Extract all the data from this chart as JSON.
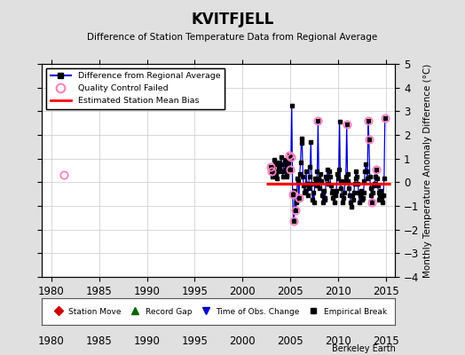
{
  "title": "KVITFJELL",
  "subtitle": "Difference of Station Temperature Data from Regional Average",
  "ylabel": "Monthly Temperature Anomaly Difference (°C)",
  "xlabel_credit": "Berkeley Earth",
  "xlim": [
    1979,
    2016
  ],
  "ylim": [
    -4,
    5
  ],
  "yticks": [
    -4,
    -3,
    -2,
    -1,
    0,
    1,
    2,
    3,
    4,
    5
  ],
  "xticks": [
    1980,
    1985,
    1990,
    1995,
    2000,
    2005,
    2010,
    2015
  ],
  "bias_line_y": -0.05,
  "bias_line_xstart": 2002.5,
  "bias_line_xend": 2015.5,
  "qc_failed_isolated": [
    [
      1981.3,
      0.3
    ]
  ],
  "background_color": "#e0e0e0",
  "plot_bg_color": "#ffffff",
  "data_color": "#0000cc",
  "bias_color": "#ff0000",
  "qc_color": "#ff80c0",
  "series_years": [
    2003.0,
    2003.083,
    2003.167,
    2003.25,
    2003.333,
    2003.417,
    2003.5,
    2003.583,
    2003.667,
    2003.75,
    2003.833,
    2003.917,
    2004.0,
    2004.083,
    2004.167,
    2004.25,
    2004.333,
    2004.417,
    2004.5,
    2004.583,
    2004.667,
    2004.75,
    2004.833,
    2004.917,
    2005.0,
    2005.083,
    2005.167,
    2005.25,
    2005.333,
    2005.417,
    2005.5,
    2005.583,
    2005.667,
    2005.75,
    2005.833,
    2005.917,
    2006.0,
    2006.083,
    2006.167,
    2006.25,
    2006.333,
    2006.417,
    2006.5,
    2006.583,
    2006.667,
    2006.75,
    2006.833,
    2006.917,
    2007.0,
    2007.083,
    2007.167,
    2007.25,
    2007.333,
    2007.417,
    2007.5,
    2007.583,
    2007.667,
    2007.75,
    2007.833,
    2007.917,
    2008.0,
    2008.083,
    2008.167,
    2008.25,
    2008.333,
    2008.417,
    2008.5,
    2008.583,
    2008.667,
    2008.75,
    2008.833,
    2008.917,
    2009.0,
    2009.083,
    2009.167,
    2009.25,
    2009.333,
    2009.417,
    2009.5,
    2009.583,
    2009.667,
    2009.75,
    2009.833,
    2009.917,
    2010.0,
    2010.083,
    2010.167,
    2010.25,
    2010.333,
    2010.417,
    2010.5,
    2010.583,
    2010.667,
    2010.75,
    2010.833,
    2010.917,
    2011.0,
    2011.083,
    2011.167,
    2011.25,
    2011.333,
    2011.417,
    2011.5,
    2011.583,
    2011.667,
    2011.75,
    2011.833,
    2011.917,
    2012.0,
    2012.083,
    2012.167,
    2012.25,
    2012.333,
    2012.417,
    2012.5,
    2012.583,
    2012.667,
    2012.75,
    2012.833,
    2012.917,
    2013.0,
    2013.083,
    2013.167,
    2013.25,
    2013.333,
    2013.417,
    2013.5,
    2013.583,
    2013.667,
    2013.75,
    2013.833,
    2013.917,
    2014.0,
    2014.083,
    2014.167,
    2014.25,
    2014.333,
    2014.417,
    2014.5,
    2014.583,
    2014.667,
    2014.75,
    2014.833,
    2014.917
  ],
  "series_values": [
    0.65,
    0.45,
    0.25,
    0.55,
    0.95,
    0.75,
    0.35,
    0.15,
    0.45,
    0.65,
    0.85,
    0.55,
    0.75,
    1.05,
    0.45,
    0.25,
    0.75,
    0.95,
    0.55,
    0.35,
    0.25,
    0.65,
    0.85,
    1.15,
    0.55,
    1.05,
    3.25,
    -0.5,
    -1.65,
    -1.6,
    -0.35,
    -1.2,
    -0.85,
    0.15,
    0.05,
    -0.65,
    0.35,
    0.85,
    1.85,
    1.65,
    0.25,
    -0.15,
    -0.45,
    -0.35,
    0.45,
    -0.05,
    -0.55,
    -0.25,
    0.25,
    0.65,
    1.7,
    -0.05,
    -0.75,
    -0.45,
    -0.85,
    0.15,
    0.05,
    -0.15,
    0.45,
    2.6,
    0.15,
    -0.25,
    0.35,
    0.05,
    -0.55,
    -0.85,
    -0.35,
    -0.75,
    -0.65,
    0.25,
    0.15,
    0.55,
    -0.05,
    0.45,
    0.25,
    -0.15,
    -0.45,
    -0.35,
    -0.65,
    -0.45,
    -0.85,
    -0.55,
    -0.35,
    0.35,
    0.15,
    0.55,
    2.55,
    0.05,
    -0.25,
    -0.55,
    -0.85,
    -0.65,
    -0.45,
    0.05,
    0.25,
    2.45,
    0.35,
    0.05,
    -0.25,
    -0.55,
    -0.85,
    -1.05,
    -0.55,
    -0.75,
    -0.45,
    -0.05,
    0.15,
    0.45,
    0.25,
    -0.05,
    -0.45,
    -0.85,
    -0.55,
    -0.35,
    -0.75,
    -0.65,
    -0.45,
    0.05,
    0.45,
    0.75,
    0.45,
    0.15,
    2.6,
    1.8,
    0.25,
    -0.25,
    -0.55,
    -0.85,
    -0.45,
    -0.15,
    -0.05,
    0.25,
    0.55,
    0.15,
    -0.15,
    -0.45,
    -0.75,
    -0.55,
    -0.35,
    -0.65,
    -0.85,
    -0.55,
    0.15,
    2.7
  ],
  "qc_failed_points": [
    [
      2003.0,
      0.65
    ],
    [
      2003.083,
      0.45
    ],
    [
      2004.917,
      1.15
    ],
    [
      2005.0,
      0.55
    ],
    [
      2005.083,
      1.05
    ],
    [
      2005.25,
      -0.5
    ],
    [
      2005.333,
      -1.65
    ],
    [
      2005.917,
      -0.65
    ],
    [
      2005.583,
      -1.2
    ],
    [
      2007.917,
      2.6
    ],
    [
      2010.917,
      2.45
    ],
    [
      2013.167,
      2.6
    ],
    [
      2013.25,
      1.8
    ],
    [
      2013.583,
      -0.85
    ],
    [
      2014.0,
      0.55
    ],
    [
      2014.917,
      2.7
    ]
  ]
}
